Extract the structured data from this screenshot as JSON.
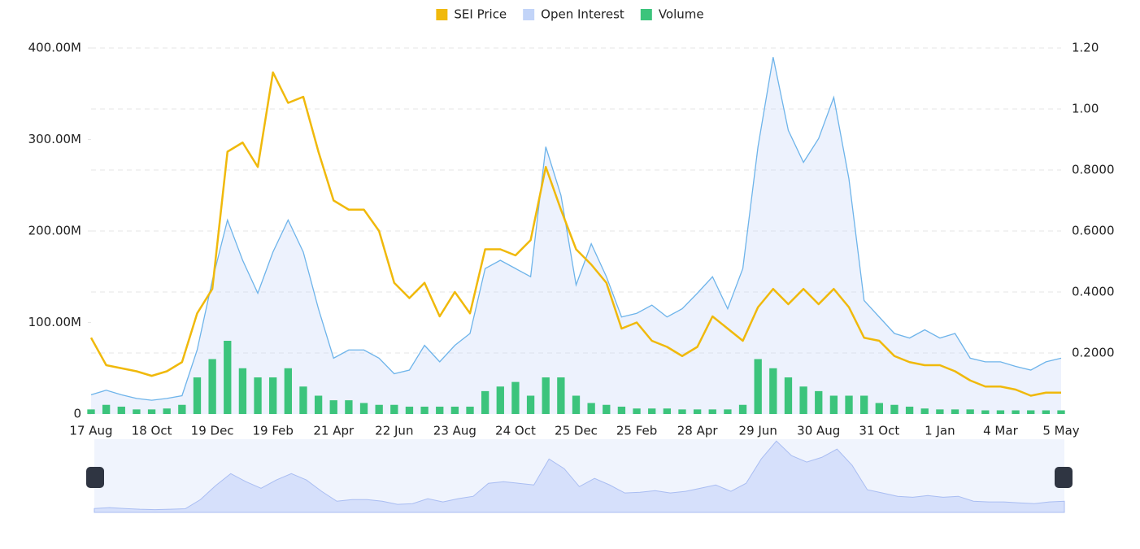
{
  "chart_data": {
    "type": "line",
    "categories": [
      "17 Aug",
      null,
      null,
      null,
      "18 Oct",
      null,
      null,
      null,
      "19 Dec",
      null,
      null,
      null,
      "19 Feb",
      null,
      null,
      null,
      "21 Apr",
      null,
      null,
      null,
      "22 Jun",
      null,
      null,
      null,
      "23 Aug",
      null,
      null,
      null,
      "24 Oct",
      null,
      null,
      null,
      "25 Dec",
      null,
      null,
      null,
      "25 Feb",
      null,
      null,
      null,
      "28 Apr",
      null,
      null,
      null,
      "29 Jun",
      null,
      null,
      null,
      "30 Aug",
      null,
      null,
      null,
      "31 Oct",
      null,
      null,
      null,
      "1 Jan",
      null,
      null,
      null,
      "4 Mar",
      null,
      null,
      null,
      "5 May"
    ],
    "series": [
      {
        "name": "SEI Price",
        "color": "#f0b90b",
        "axis": "y2",
        "values": [
          0.25,
          0.16,
          0.15,
          0.14,
          0.125,
          0.14,
          0.17,
          0.33,
          0.41,
          0.86,
          0.89,
          0.81,
          1.12,
          1.02,
          1.04,
          0.86,
          0.7,
          0.67,
          0.67,
          0.6,
          0.43,
          0.38,
          0.43,
          0.32,
          0.4,
          0.33,
          0.54,
          0.54,
          0.52,
          0.57,
          0.81,
          0.67,
          0.54,
          0.49,
          0.43,
          0.28,
          0.3,
          0.24,
          0.22,
          0.19,
          0.22,
          0.32,
          0.28,
          0.24,
          0.35,
          0.41,
          0.36,
          0.41,
          0.36,
          0.41,
          0.35,
          0.25,
          0.24,
          0.19,
          0.17,
          0.16,
          0.16,
          0.14,
          0.11,
          0.09,
          0.09,
          0.08,
          0.06,
          0.07,
          0.07
        ]
      },
      {
        "name": "Open Interest",
        "color": "#c2d4f8",
        "line_color": "#6eb4ea",
        "values": [
          21000000,
          26000000,
          21000000,
          17000000,
          15000000,
          17000000,
          20000000,
          70000000,
          146000000,
          212000000,
          168000000,
          132000000,
          177000000,
          212000000,
          177000000,
          115000000,
          61000000,
          70000000,
          70000000,
          61000000,
          44000000,
          48000000,
          75000000,
          57000000,
          75000000,
          88000000,
          159000000,
          168000000,
          159000000,
          150000000,
          292000000,
          239000000,
          141000000,
          186000000,
          150000000,
          106000000,
          110000000,
          119000000,
          106000000,
          115000000,
          132000000,
          150000000,
          115000000,
          159000000,
          292000000,
          390000000,
          310000000,
          275000000,
          301000000,
          346000000,
          257000000,
          124000000,
          106000000,
          88000000,
          83000000,
          92000000,
          83000000,
          88000000,
          61000000,
          57000000,
          57000000,
          52000000,
          48000000,
          57000000,
          61000000
        ]
      },
      {
        "name": "Volume",
        "color": "#3cc47c",
        "values": [
          5000000,
          10000000,
          8000000,
          5000000,
          5000000,
          6000000,
          10000000,
          40000000,
          60000000,
          80000000,
          50000000,
          40000000,
          40000000,
          50000000,
          30000000,
          20000000,
          15000000,
          15000000,
          12000000,
          10000000,
          10000000,
          8000000,
          8000000,
          8000000,
          8000000,
          8000000,
          25000000,
          30000000,
          35000000,
          20000000,
          40000000,
          40000000,
          20000000,
          12000000,
          10000000,
          8000000,
          6000000,
          6000000,
          6000000,
          5000000,
          5000000,
          5000000,
          5000000,
          10000000,
          60000000,
          50000000,
          40000000,
          30000000,
          25000000,
          20000000,
          20000000,
          20000000,
          12000000,
          10000000,
          8000000,
          6000000,
          5000000,
          5000000,
          5000000,
          4000000,
          4000000,
          4000000,
          4000000,
          4000000,
          4000000
        ]
      }
    ],
    "ylim": [
      0,
      400000000
    ],
    "yticks": [
      0,
      {
        "value": 100000000,
        "label": "100.00M"
      },
      {
        "value": 200000000,
        "label": "200.00M"
      },
      {
        "value": 300000000,
        "label": "300.00M"
      },
      {
        "value": 400000000,
        "label": "400.00M"
      }
    ],
    "y2lim": [
      0,
      1.2
    ],
    "y2ticks": [
      {
        "value": 0.2,
        "label": "0.2000"
      },
      {
        "value": 0.4,
        "label": "0.4000"
      },
      {
        "value": 0.6,
        "label": "0.6000"
      },
      {
        "value": 0.8,
        "label": "0.8000"
      },
      {
        "value": 1,
        "label": "1.00"
      },
      {
        "value": 1.2,
        "label": "1.20"
      }
    ],
    "grid": true,
    "legend": "top"
  }
}
